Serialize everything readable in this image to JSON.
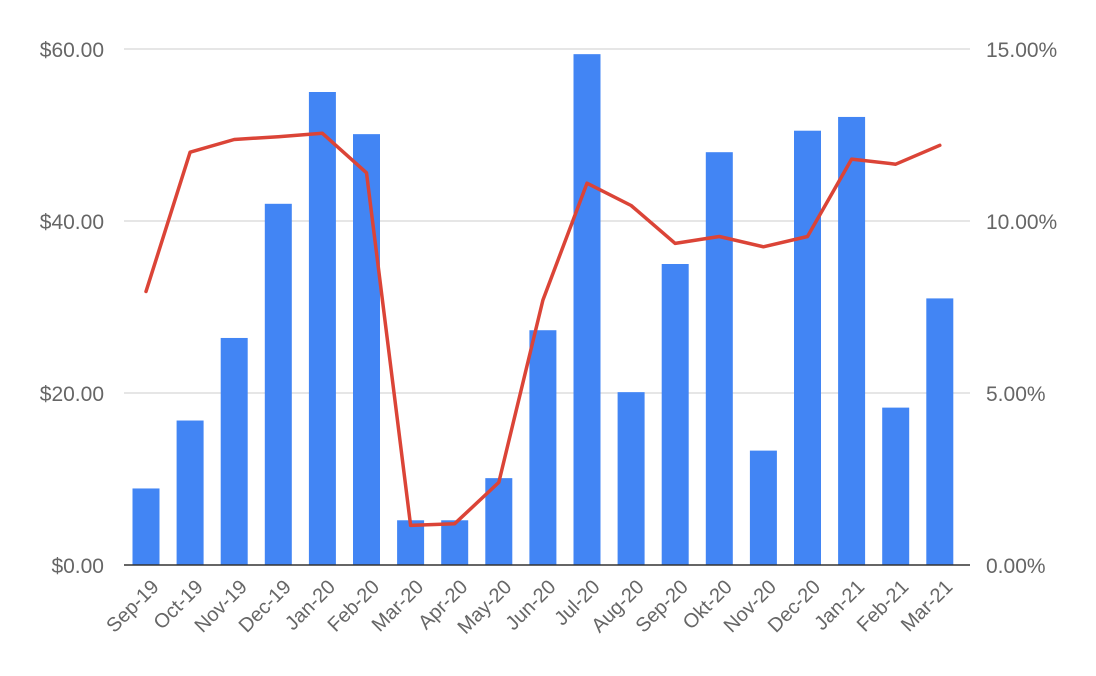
{
  "chart_data": {
    "type": "bar",
    "title": "",
    "categories": [
      "Sep-19",
      "Oct-19",
      "Nov-19",
      "Dec-19",
      "Jan-20",
      "Feb-20",
      "Mar-20",
      "Apr-20",
      "May-20",
      "Jun-20",
      "Jul-20",
      "Aug-20",
      "Sep-20",
      "Okt-20",
      "Nov-20",
      "Dec-20",
      "Jan-21",
      "Feb-21",
      "Mar-21"
    ],
    "series": [
      {
        "type": "bar",
        "axis": "left",
        "color": "#4285F4",
        "values": [
          8.9,
          16.8,
          26.4,
          42.0,
          55.0,
          50.1,
          5.2,
          5.2,
          10.1,
          27.3,
          59.4,
          20.1,
          35.0,
          48.0,
          13.3,
          50.5,
          52.1,
          18.3,
          31.0
        ]
      },
      {
        "type": "line",
        "axis": "right",
        "color": "#DB4437",
        "values": [
          0.0795,
          0.12,
          0.1237,
          0.1245,
          0.1255,
          0.114,
          0.0115,
          0.012,
          0.024,
          0.077,
          0.111,
          0.1045,
          0.0935,
          0.0955,
          0.0925,
          0.0955,
          0.118,
          0.1165,
          0.122
        ]
      }
    ],
    "y_left": {
      "min": 0,
      "max": 60,
      "ticks": [
        "$0.00",
        "$20.00",
        "$40.00",
        "$60.00"
      ]
    },
    "y_right": {
      "min": 0,
      "max": 0.15,
      "ticks": [
        "0.00%",
        "5.00%",
        "10.00%",
        "15.00%"
      ]
    },
    "grid": true,
    "legend": "none"
  }
}
